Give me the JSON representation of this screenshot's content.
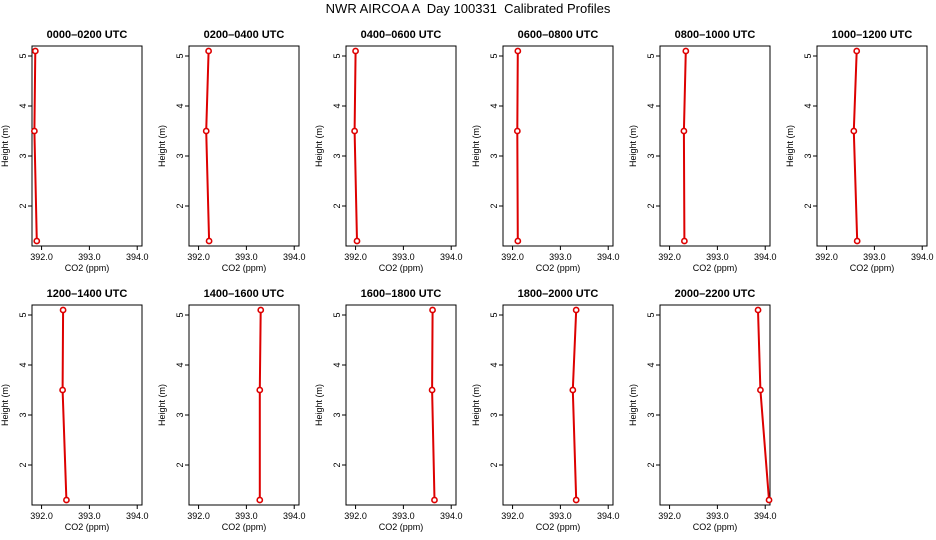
{
  "title": "NWR AIRCOA A  Day 100331  Calibrated Profiles",
  "xlabel": "CO2 (ppm)",
  "ylabel": "Height (m)",
  "colors": {
    "line": "#dd0000",
    "axis": "#000000"
  },
  "chart_data": [
    {
      "type": "line",
      "title": "0000–0200 UTC",
      "xlim": [
        391.8,
        394.1
      ],
      "ylim": [
        1.2,
        5.2
      ],
      "xticks": [
        "392.0",
        "393.0",
        "394.0"
      ],
      "yticks": [
        "2",
        "3",
        "4",
        "5"
      ],
      "x": [
        391.9,
        391.85,
        391.87
      ],
      "y": [
        1.3,
        3.5,
        5.1
      ]
    },
    {
      "type": "line",
      "title": "0200–0400 UTC",
      "xlim": [
        391.8,
        394.1
      ],
      "ylim": [
        1.2,
        5.2
      ],
      "xticks": [
        "392.0",
        "393.0",
        "394.0"
      ],
      "yticks": [
        "2",
        "3",
        "4",
        "5"
      ],
      "x": [
        392.22,
        392.16,
        392.21
      ],
      "y": [
        1.3,
        3.5,
        5.1
      ]
    },
    {
      "type": "line",
      "title": "0400–0600 UTC",
      "xlim": [
        391.8,
        394.1
      ],
      "ylim": [
        1.2,
        5.2
      ],
      "xticks": [
        "392.0",
        "393.0",
        "394.0"
      ],
      "yticks": [
        "2",
        "3",
        "4",
        "5"
      ],
      "x": [
        392.03,
        391.98,
        392.0
      ],
      "y": [
        1.3,
        3.5,
        5.1
      ]
    },
    {
      "type": "line",
      "title": "0600–0800 UTC",
      "xlim": [
        391.8,
        394.1
      ],
      "ylim": [
        1.2,
        5.2
      ],
      "xticks": [
        "392.0",
        "393.0",
        "394.0"
      ],
      "yticks": [
        "2",
        "3",
        "4",
        "5"
      ],
      "x": [
        392.11,
        392.1,
        392.11
      ],
      "y": [
        1.3,
        3.5,
        5.1
      ]
    },
    {
      "type": "line",
      "title": "0800–1000 UTC",
      "xlim": [
        391.8,
        394.1
      ],
      "ylim": [
        1.2,
        5.2
      ],
      "xticks": [
        "392.0",
        "393.0",
        "394.0"
      ],
      "yticks": [
        "2",
        "3",
        "4",
        "5"
      ],
      "x": [
        392.31,
        392.3,
        392.34
      ],
      "y": [
        1.3,
        3.5,
        5.1
      ]
    },
    {
      "type": "line",
      "title": "1000–1200 UTC",
      "xlim": [
        391.8,
        394.1
      ],
      "ylim": [
        1.2,
        5.2
      ],
      "xticks": [
        "392.0",
        "393.0",
        "394.0"
      ],
      "yticks": [
        "2",
        "3",
        "4",
        "5"
      ],
      "x": [
        392.64,
        392.57,
        392.63
      ],
      "y": [
        1.3,
        3.5,
        5.1
      ]
    },
    {
      "type": "line",
      "title": "1200–1400 UTC",
      "xlim": [
        391.8,
        394.1
      ],
      "ylim": [
        1.2,
        5.2
      ],
      "xticks": [
        "392.0",
        "393.0",
        "394.0"
      ],
      "yticks": [
        "2",
        "3",
        "4",
        "5"
      ],
      "x": [
        392.52,
        392.44,
        392.45
      ],
      "y": [
        1.3,
        3.5,
        5.1
      ]
    },
    {
      "type": "line",
      "title": "1400–1600 UTC",
      "xlim": [
        391.8,
        394.1
      ],
      "ylim": [
        1.2,
        5.2
      ],
      "xticks": [
        "392.0",
        "393.0",
        "394.0"
      ],
      "yticks": [
        "2",
        "3",
        "4",
        "5"
      ],
      "x": [
        393.28,
        393.28,
        393.3
      ],
      "y": [
        1.3,
        3.5,
        5.1
      ]
    },
    {
      "type": "line",
      "title": "1600–1800 UTC",
      "xlim": [
        391.8,
        394.1
      ],
      "ylim": [
        1.2,
        5.2
      ],
      "xticks": [
        "392.0",
        "393.0",
        "394.0"
      ],
      "yticks": [
        "2",
        "3",
        "4",
        "5"
      ],
      "x": [
        393.65,
        393.6,
        393.61
      ],
      "y": [
        1.3,
        3.5,
        5.1
      ]
    },
    {
      "type": "line",
      "title": "1800–2000 UTC",
      "xlim": [
        391.8,
        394.1
      ],
      "ylim": [
        1.2,
        5.2
      ],
      "xticks": [
        "392.0",
        "393.0",
        "394.0"
      ],
      "yticks": [
        "2",
        "3",
        "4",
        "5"
      ],
      "x": [
        393.33,
        393.26,
        393.33
      ],
      "y": [
        1.3,
        3.5,
        5.1
      ]
    },
    {
      "type": "line",
      "title": "2000–2200 UTC",
      "xlim": [
        391.8,
        394.1
      ],
      "ylim": [
        1.2,
        5.2
      ],
      "xticks": [
        "392.0",
        "393.0",
        "394.0"
      ],
      "yticks": [
        "2",
        "3",
        "4",
        "5"
      ],
      "x": [
        394.08,
        393.9,
        393.85
      ],
      "y": [
        1.3,
        3.5,
        5.1
      ]
    }
  ]
}
